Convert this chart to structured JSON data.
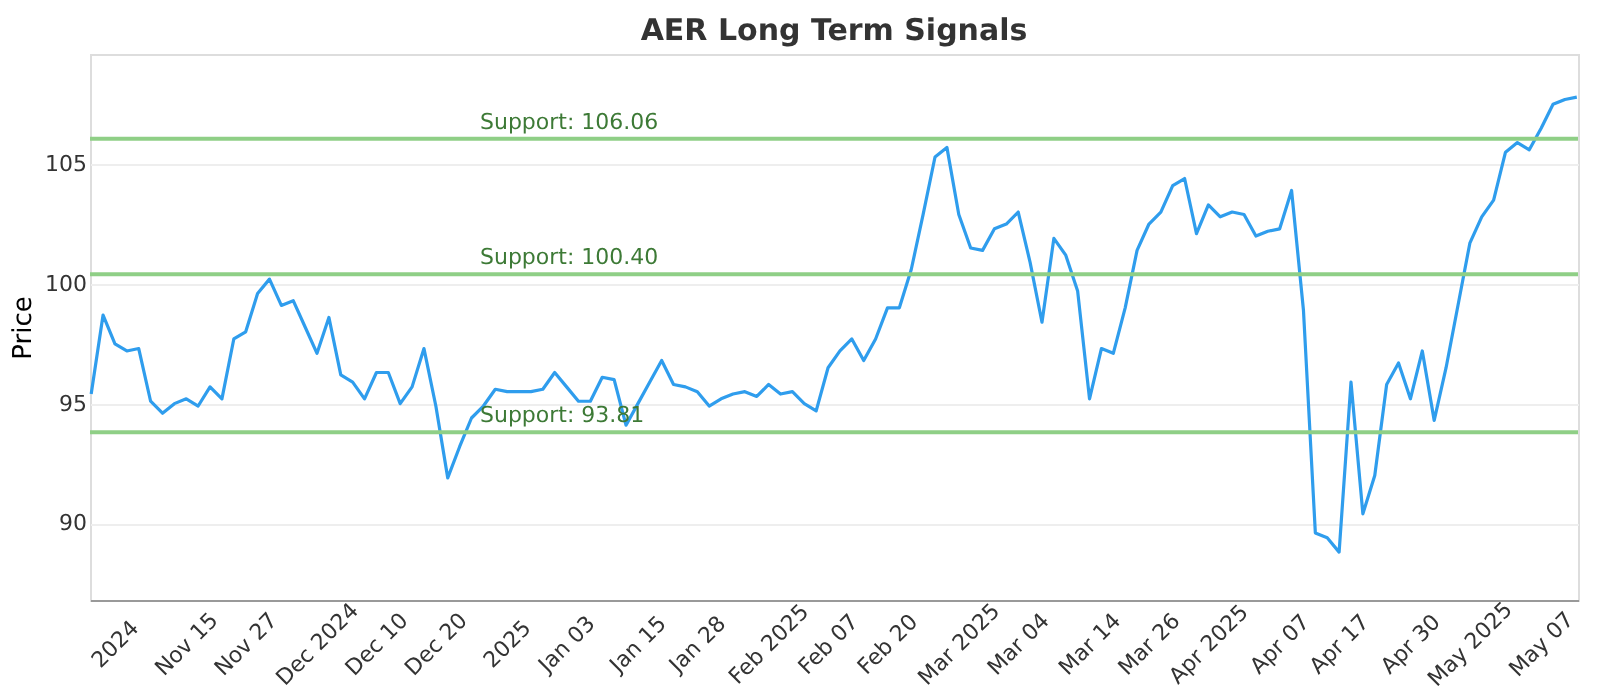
{
  "chart_data": {
    "type": "line",
    "title": "AER Long Term Signals",
    "ylabel": "Price",
    "categories": [
      null,
      null,
      "2024",
      null,
      null,
      null,
      null,
      null,
      "Nov 15",
      null,
      null,
      null,
      null,
      "Nov 27",
      null,
      null,
      null,
      null,
      null,
      "Dec 2024",
      null,
      null,
      null,
      null,
      "Dec 10",
      null,
      null,
      null,
      null,
      "Dec 20",
      null,
      null,
      null,
      null,
      null,
      "2025",
      null,
      null,
      null,
      null,
      "Jan 03",
      null,
      null,
      null,
      null,
      null,
      "Jan 15",
      null,
      null,
      null,
      null,
      "Jan 28",
      null,
      null,
      null,
      null,
      null,
      "Feb 2025",
      null,
      null,
      null,
      null,
      "Feb 07",
      null,
      null,
      null,
      null,
      "Feb 20",
      null,
      null,
      null,
      null,
      null,
      "Mar 2025",
      null,
      null,
      null,
      null,
      "Mar 04",
      null,
      null,
      null,
      null,
      null,
      "Mar 14",
      null,
      null,
      null,
      null,
      "Mar 26",
      null,
      null,
      null,
      null,
      "Apr 2025",
      null,
      null,
      null,
      null,
      null,
      "Apr 07",
      null,
      null,
      null,
      null,
      "Apr 17",
      null,
      null,
      null,
      null,
      null,
      "Apr 30",
      null,
      null,
      null,
      null,
      "May 2025",
      null,
      null,
      null,
      null,
      null,
      "May 07",
      null,
      null,
      null
    ],
    "series": [
      {
        "color": "#2f9ded",
        "values": [
          95.4,
          98.7,
          97.5,
          97.2,
          97.3,
          95.1,
          94.6,
          95.0,
          95.2,
          94.9,
          95.7,
          95.2,
          97.7,
          98.0,
          99.6,
          100.2,
          99.1,
          99.3,
          98.2,
          97.1,
          98.6,
          96.2,
          95.9,
          95.2,
          96.3,
          96.3,
          95.0,
          95.7,
          97.3,
          94.9,
          91.9,
          93.2,
          94.4,
          94.9,
          95.6,
          95.5,
          95.5,
          95.5,
          95.6,
          96.3,
          95.7,
          95.1,
          95.1,
          96.1,
          96.0,
          94.1,
          95.0,
          95.9,
          96.8,
          95.8,
          95.7,
          95.5,
          94.9,
          95.2,
          95.4,
          95.5,
          95.3,
          95.8,
          95.4,
          95.5,
          95.0,
          94.7,
          96.5,
          97.2,
          97.7,
          96.8,
          97.7,
          99.0,
          99.0,
          100.6,
          102.9,
          105.3,
          105.7,
          102.9,
          101.5,
          101.4,
          102.3,
          102.5,
          103.0,
          100.9,
          98.4,
          101.9,
          101.2,
          99.7,
          95.2,
          97.3,
          97.1,
          99.0,
          101.4,
          102.5,
          103.0,
          104.1,
          104.4,
          102.1,
          103.3,
          102.8,
          103.0,
          102.9,
          102.0,
          102.2,
          102.3,
          103.9,
          98.9,
          89.6,
          89.4,
          88.8,
          95.9,
          90.4,
          92.0,
          95.8,
          96.7,
          95.2,
          97.2,
          94.3,
          96.5,
          99.1,
          101.7,
          102.8,
          103.5,
          105.5,
          105.9,
          105.6,
          106.5,
          107.5,
          107.7,
          107.8
        ]
      }
    ],
    "ylim": [
      86.8,
      109.6
    ],
    "yticks": [
      90,
      95,
      100,
      105
    ],
    "grid": "y",
    "marker": "none",
    "line_style": "solid",
    "ref_lines": [
      {
        "axis": "y",
        "value": 106.06,
        "label": "Support: 106.06",
        "color": "#8fcf86"
      },
      {
        "axis": "y",
        "value": 100.4,
        "label": "Support: 100.40",
        "color": "#8fcf86"
      },
      {
        "axis": "y",
        "value": 93.81,
        "label": "Support: 93.81",
        "color": "#8fcf86"
      }
    ]
  }
}
